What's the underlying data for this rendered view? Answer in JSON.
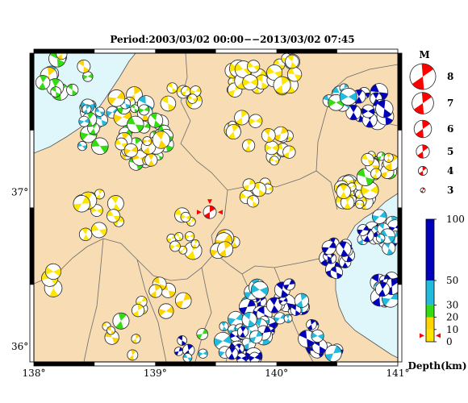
{
  "title": "Period:2003/03/02 00:00−−2013/03/02 07:45",
  "lon_ticks": [
    {
      "value": 138,
      "label": "138°"
    },
    {
      "value": 139,
      "label": "139°"
    },
    {
      "value": 140,
      "label": "140°"
    },
    {
      "value": 141,
      "label": "141°"
    }
  ],
  "lat_ticks": [
    {
      "value": 37,
      "label": "37°"
    },
    {
      "value": 36,
      "label": "36°"
    }
  ],
  "extent": {
    "lon": [
      138,
      141
    ],
    "lat": [
      35.9,
      37.9
    ]
  },
  "colors": {
    "land": "#f7dcb4",
    "sea": "#dff6fb",
    "border": "#6a6a6a",
    "epicenter": "#ff0000"
  },
  "magnitude_legend": {
    "title": "M",
    "items": [
      {
        "label": "8",
        "value": 8
      },
      {
        "label": "7",
        "value": 7
      },
      {
        "label": "6",
        "value": 6
      },
      {
        "label": "5",
        "value": 5
      },
      {
        "label": "4",
        "value": 4
      },
      {
        "label": "3",
        "value": 3
      }
    ]
  },
  "depth_colorbar": {
    "label": "Depth(km)",
    "range": [
      0,
      100
    ],
    "ticks": [
      {
        "value": 100,
        "label": "100"
      },
      {
        "value": 50,
        "label": "50"
      },
      {
        "value": 30,
        "label": "30"
      },
      {
        "value": 20,
        "label": "20"
      },
      {
        "value": 10,
        "label": "10"
      },
      {
        "value": 0,
        "label": "0"
      }
    ],
    "bands": [
      {
        "from": 0,
        "to": 10,
        "color": "#ffe600"
      },
      {
        "from": 10,
        "to": 20,
        "color": "#ffd400"
      },
      {
        "from": 20,
        "to": 30,
        "color": "#33dd11"
      },
      {
        "from": 30,
        "to": 50,
        "color": "#22bbdd"
      },
      {
        "from": 50,
        "to": 100,
        "color": "#0000bb"
      }
    ]
  },
  "mainshock": {
    "lon": 139.45,
    "lat": 36.87,
    "mag": 5.0,
    "depth": 5
  }
}
